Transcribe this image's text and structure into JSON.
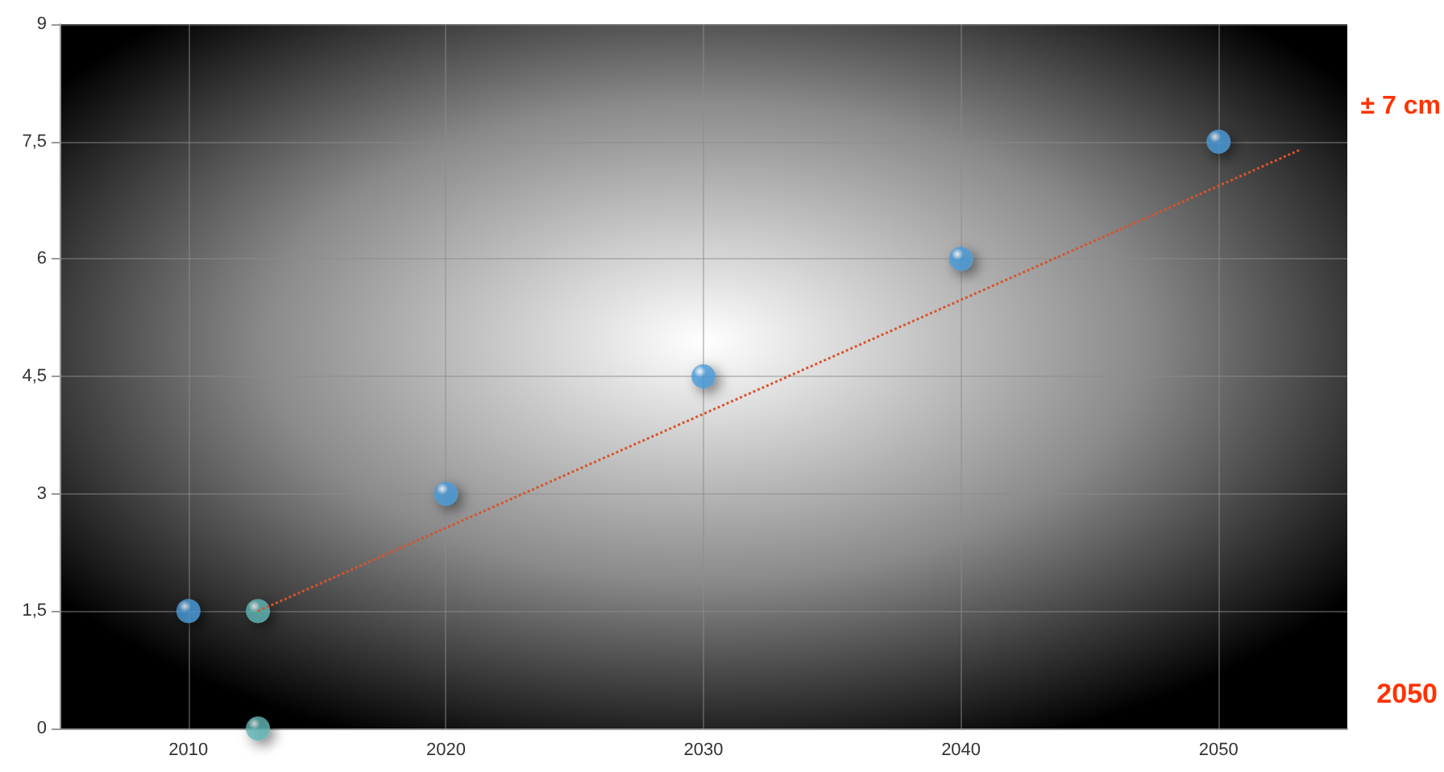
{
  "chart_data": {
    "type": "scatter",
    "xlim": [
      2005,
      2055
    ],
    "xticks": [
      2010,
      2020,
      2030,
      2040,
      2050
    ],
    "ylim": [
      0,
      9
    ],
    "yticks": [
      0,
      {
        "value": 1.5,
        "label": "1,5"
      },
      3,
      {
        "value": 4.5,
        "label": "4,5"
      },
      6,
      {
        "value": 7.5,
        "label": "7,5"
      },
      9
    ],
    "grid": true,
    "marker": "circle",
    "series": [
      {
        "color": "#4a9ad8",
        "x": [
          2010,
          2020,
          2030,
          2040,
          2050
        ],
        "values": [
          1.5,
          3,
          4.5,
          6,
          7.5
        ]
      },
      {
        "type": "scatter",
        "color": "#5fb3b3",
        "x": [
          2012.7,
          2012.7
        ],
        "values": [
          1.5,
          0
        ]
      },
      {
        "type": "line",
        "color": "#d9532c",
        "line_style": "dotted",
        "marker": "none",
        "x": [
          2012.7,
          2053.2
        ],
        "values": [
          1.5,
          7.4
        ]
      }
    ],
    "annotations": [
      "± 7 cm",
      "2050"
    ]
  }
}
